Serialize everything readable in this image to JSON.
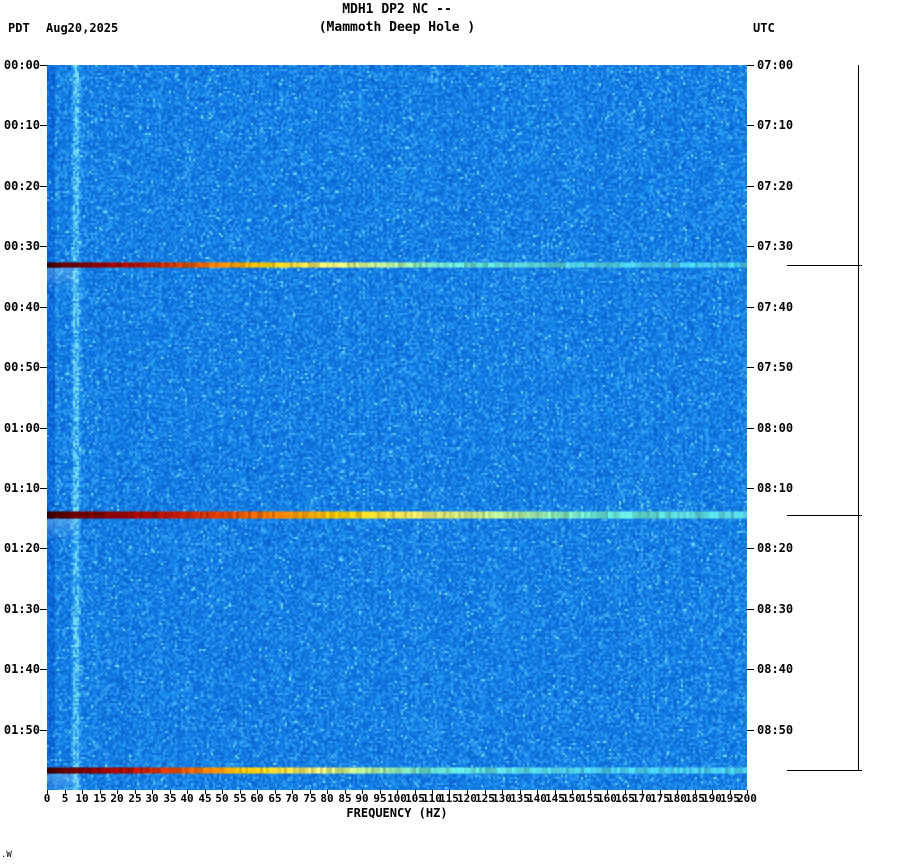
{
  "header": {
    "tz_left": "PDT",
    "date": "Aug20,2025",
    "title_line1": "MDH1 DP2 NC --",
    "title_line2": "(Mammoth Deep Hole )",
    "tz_right": "UTC"
  },
  "footer": {
    "mark": ".W"
  },
  "axes": {
    "xlabel": "FREQUENCY (HZ)",
    "left_ticks": [
      "00:00",
      "00:10",
      "00:20",
      "00:30",
      "00:40",
      "00:50",
      "01:00",
      "01:10",
      "01:20",
      "01:30",
      "01:40",
      "01:50"
    ],
    "right_ticks": [
      "07:00",
      "07:10",
      "07:20",
      "07:30",
      "07:40",
      "07:50",
      "08:00",
      "08:10",
      "08:20",
      "08:30",
      "08:40",
      "08:50"
    ]
  },
  "chart_data": {
    "type": "heatmap",
    "title": "MDH1 DP2 NC -- (Mammoth Deep Hole )",
    "xlabel": "FREQUENCY (HZ)",
    "x_range_hz": [
      0,
      200
    ],
    "x_ticks_hz": [
      0,
      5,
      10,
      15,
      20,
      25,
      30,
      35,
      40,
      45,
      50,
      55,
      60,
      65,
      70,
      75,
      80,
      85,
      90,
      95,
      100,
      105,
      110,
      115,
      120,
      125,
      130,
      135,
      140,
      145,
      150,
      155,
      160,
      165,
      170,
      175,
      180,
      185,
      190,
      195,
      200
    ],
    "y_axis_left": "PDT time, 00:00 to 02:00, 10-minute ticks",
    "y_axis_right": "UTC time, 07:00 to 09:00, 10-minute ticks",
    "time_span_minutes": 120,
    "background": "quiet broadband seismic noise, speckled blue",
    "palette": {
      "background_low": "#0852c4",
      "background_mid": "#1488ec",
      "background_high": "#7ee2fa",
      "text": "#000000"
    },
    "persistent_tone_hz": 8,
    "dark_band_below_hz": 2,
    "event_gradient_stops": [
      [
        0.0,
        "#320000"
      ],
      [
        0.02,
        "#5c0000"
      ],
      [
        0.09,
        "#8b0000"
      ],
      [
        0.15,
        "#b21000"
      ],
      [
        0.22,
        "#d84000"
      ],
      [
        0.29,
        "#f08000"
      ],
      [
        0.36,
        "#f4c800"
      ],
      [
        0.46,
        "#eee668"
      ],
      [
        0.57,
        "#b0e694"
      ],
      [
        0.68,
        "#62d8c8"
      ],
      [
        1.0,
        "#46c8ea"
      ]
    ],
    "events": [
      {
        "time_pdt": "00:33",
        "time_utc": "07:33",
        "time_frac": 0.276,
        "strength_scale": 0.85,
        "thickness_px": 6,
        "description": "broadband event: dark red at low frequency grading through orange/yellow to cyan at high frequency"
      },
      {
        "time_pdt": "01:15",
        "time_utc": "08:15",
        "time_frac": 0.621,
        "strength_scale": 1.15,
        "thickness_px": 8,
        "description": "strongest broadband event: dark red extends to ~35 Hz, yellow to ~110 Hz, cyan beyond"
      },
      {
        "time_pdt": "01:57",
        "time_utc": "08:57",
        "time_frac": 0.972,
        "strength_scale": 0.8,
        "thickness_px": 7,
        "description": "broadband event near bottom of plot: dark red to ~25 Hz, yellow patch ~55-75 Hz, pale cyan beyond"
      }
    ]
  }
}
